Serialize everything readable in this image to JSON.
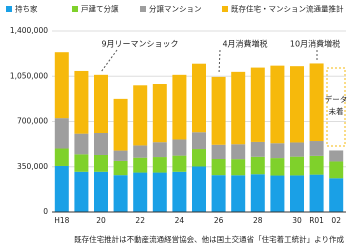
{
  "chart_data": {
    "type": "stacked_bar",
    "categories": [
      "H18",
      null,
      "20",
      null,
      "22",
      null,
      "24",
      null,
      "26",
      null,
      "28",
      null,
      "30",
      "R01",
      "02"
    ],
    "series": [
      {
        "name": "持ち家",
        "color": "#1aa0e6",
        "values": [
          356000,
          311000,
          311000,
          285000,
          305000,
          305000,
          311000,
          352000,
          285000,
          284000,
          292000,
          282000,
          283000,
          289000,
          261000
        ]
      },
      {
        "name": "戸建て分譲",
        "color": "#7fd12b",
        "values": [
          135000,
          135000,
          130000,
          110000,
          115000,
          120000,
          125000,
          135000,
          125000,
          125000,
          135000,
          135000,
          145000,
          145000,
          130000
        ]
      },
      {
        "name": "分譲マンション",
        "color": "#9e9e9e",
        "values": [
          235000,
          160000,
          170000,
          80000,
          95000,
          115000,
          125000,
          130000,
          110000,
          115000,
          115000,
          115000,
          110000,
          115000,
          85000
        ]
      },
      {
        "name": "既存住宅・マンション流通量推計",
        "color": "#f6b90c",
        "values": [
          510000,
          485000,
          450000,
          400000,
          465000,
          450000,
          500000,
          530000,
          525000,
          560000,
          575000,
          600000,
          590000,
          600000,
          null
        ]
      }
    ],
    "ylim": [
      0,
      1400000
    ],
    "yticks": [
      0,
      {
        "value": 350000,
        "label": "350,000"
      },
      {
        "value": 700000,
        "label": "700,000"
      },
      {
        "value": 1050000,
        "label": "1,050,000"
      },
      {
        "value": 1400000,
        "label": "1,400,000"
      }
    ],
    "grid": true,
    "annotations": [
      "9月リーマンショック",
      "4月消費増税",
      "10月消費増税"
    ],
    "no_data_note": [
      "データ",
      "未着"
    ],
    "note": "既存住宅推計は不動産流通経営協会、他は国土交通省「住宅着工統計」より作成"
  }
}
